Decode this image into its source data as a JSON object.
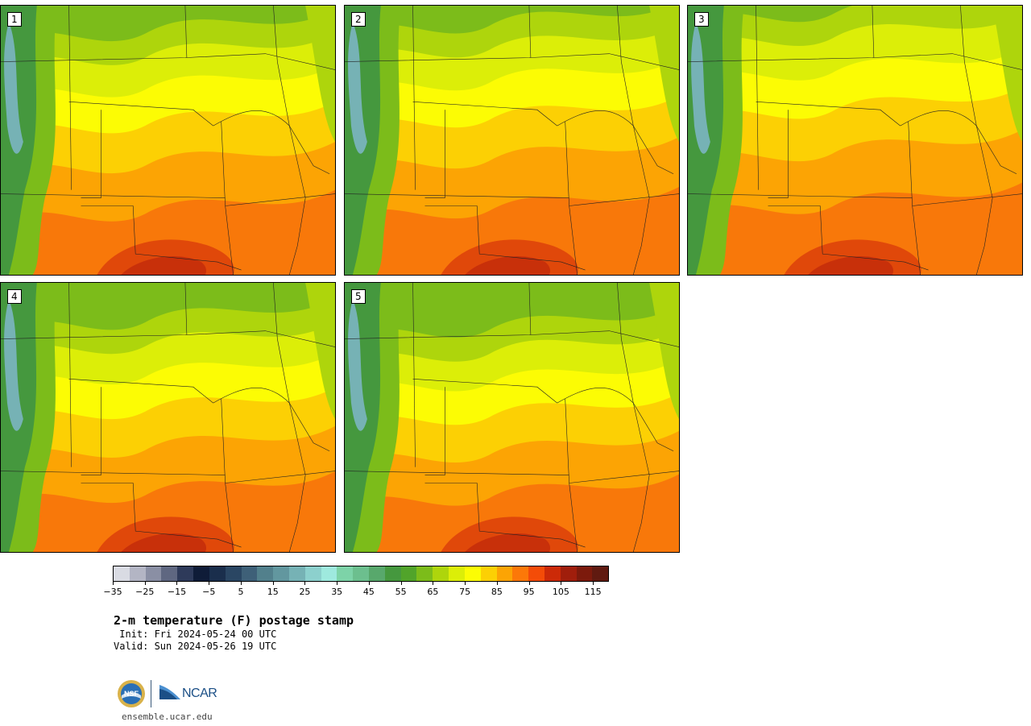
{
  "panels": [
    {
      "label": "1",
      "variant": 0
    },
    {
      "label": "2",
      "variant": 1
    },
    {
      "label": "3",
      "variant": 2
    },
    {
      "label": "4",
      "variant": 3
    },
    {
      "label": "5",
      "variant": 4
    }
  ],
  "colorbar": {
    "colors": [
      "#d9dbe3",
      "#b3b5c4",
      "#8a8fa4",
      "#5f6781",
      "#2e3a5a",
      "#0f1c38",
      "#1a2e4c",
      "#2a4663",
      "#3e6078",
      "#52808c",
      "#62979f",
      "#76b2b5",
      "#8cd0cd",
      "#9ee9de",
      "#7dd3a8",
      "#6cbf8e",
      "#58a86c",
      "#45983e",
      "#51a42a",
      "#7cbc1a",
      "#aed50c",
      "#dcee08",
      "#fcfc04",
      "#fcd004",
      "#fca404",
      "#fc7808",
      "#f44c08",
      "#cc2a08",
      "#a01e0c",
      "#7c1a0c",
      "#601a10"
    ],
    "tick_labels": [
      "−35",
      "−25",
      "−15",
      "−5",
      "5",
      "15",
      "25",
      "35",
      "45",
      "55",
      "65",
      "75",
      "85",
      "95",
      "105",
      "115"
    ]
  },
  "title": "2-m temperature (F) postage stamp",
  "init": " Init: Fri 2024-05-24 00 UTC",
  "valid": "Valid: Sun 2024-05-26 19 UTC",
  "logos": {
    "ncar": "NCAR",
    "nsf": "NSF"
  },
  "website": "ensemble.ucar.edu"
}
